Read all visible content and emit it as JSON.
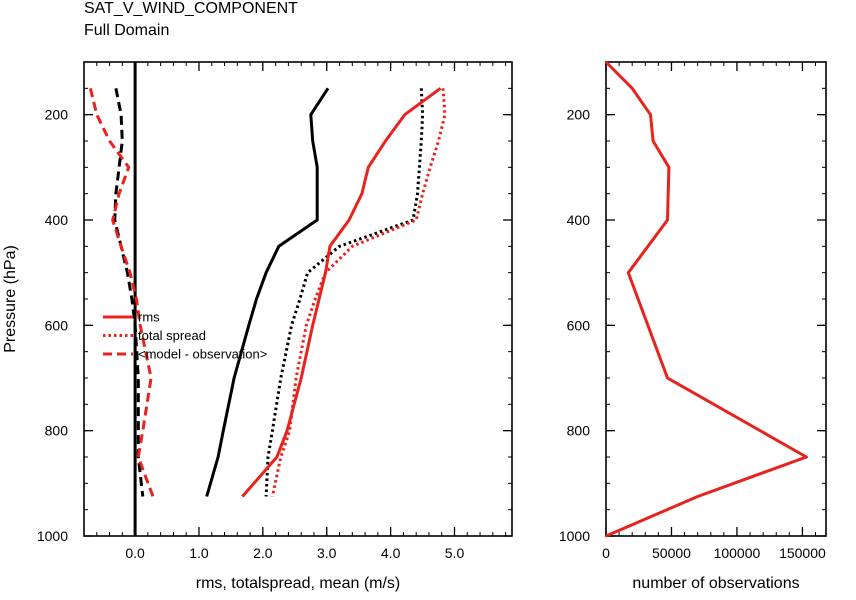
{
  "header": {
    "title": "SAT_V_WIND_COMPONENT",
    "subtitle": "Full Domain"
  },
  "chart_data": [
    {
      "type": "line",
      "xlabel": "rms, totalspread, mean (m/s)",
      "ylabel": "Pressure (hPa)",
      "xlim": [
        -0.8,
        5.9
      ],
      "ylim": [
        1000,
        100
      ],
      "xticks": [
        0.0,
        1.0,
        2.0,
        3.0,
        4.0,
        5.0
      ],
      "xtick_labels": [
        "0.0",
        "1.0",
        "2.0",
        "3.0",
        "4.0",
        "5.0"
      ],
      "yticks": [
        200,
        400,
        600,
        800,
        1000
      ],
      "ytick_labels": [
        "200",
        "400",
        "600",
        "800",
        "1000"
      ],
      "y_reversed": true,
      "legend_position": "left-middle",
      "zero_line": true,
      "series": [
        {
          "name": "rms",
          "group": "red",
          "color": "#e8221c",
          "dash": "solid",
          "x": [
            4.78,
            4.22,
            3.92,
            3.65,
            3.55,
            3.35,
            3.05,
            2.98,
            2.88,
            2.78,
            2.6,
            2.38,
            2.22,
            1.68
          ],
          "y": [
            150,
            200,
            250,
            300,
            350,
            400,
            450,
            500,
            550,
            600,
            700,
            800,
            850,
            925
          ]
        },
        {
          "name": "total spread",
          "group": "red",
          "color": "#e8221c",
          "dash": "dotted",
          "x": [
            4.82,
            4.85,
            4.75,
            4.62,
            4.5,
            4.4,
            3.4,
            2.98,
            2.82,
            2.68,
            2.52,
            2.42,
            2.28,
            2.15
          ],
          "y": [
            150,
            200,
            250,
            300,
            350,
            400,
            450,
            500,
            550,
            600,
            700,
            800,
            850,
            925
          ]
        },
        {
          "name": "<model - observation>",
          "group": "red",
          "color": "#e8221c",
          "dash": "dashed",
          "x": [
            -0.7,
            -0.6,
            -0.4,
            -0.1,
            -0.25,
            -0.35,
            -0.22,
            -0.08,
            0.02,
            0.08,
            0.25,
            0.12,
            0.05,
            0.28
          ],
          "y": [
            150,
            200,
            250,
            300,
            350,
            400,
            450,
            500,
            550,
            600,
            700,
            800,
            850,
            925
          ]
        },
        {
          "name": "",
          "group": "black",
          "color": "#000000",
          "dash": "solid",
          "x": [
            3.02,
            2.75,
            2.78,
            2.85,
            2.85,
            2.85,
            2.25,
            2.05,
            1.9,
            1.78,
            1.55,
            1.38,
            1.3,
            1.12
          ],
          "y": [
            150,
            200,
            250,
            300,
            350,
            400,
            450,
            500,
            550,
            600,
            700,
            800,
            850,
            925
          ]
        },
        {
          "name": "",
          "group": "black",
          "color": "#000000",
          "dash": "dotted",
          "x": [
            4.48,
            4.5,
            4.48,
            4.45,
            4.42,
            4.35,
            3.2,
            2.7,
            2.58,
            2.45,
            2.28,
            2.15,
            2.08,
            2.05
          ],
          "y": [
            150,
            200,
            250,
            300,
            350,
            400,
            450,
            500,
            550,
            600,
            700,
            800,
            850,
            925
          ]
        },
        {
          "name": "",
          "group": "black",
          "color": "#000000",
          "dash": "dashed",
          "x": [
            -0.3,
            -0.22,
            -0.2,
            -0.25,
            -0.3,
            -0.32,
            -0.22,
            -0.12,
            -0.05,
            0.0,
            0.05,
            0.05,
            0.05,
            0.12
          ],
          "y": [
            150,
            200,
            250,
            300,
            350,
            400,
            450,
            500,
            550,
            600,
            700,
            800,
            850,
            925
          ]
        }
      ]
    },
    {
      "type": "line",
      "xlabel": "number of observations",
      "ylabel": "",
      "xlim": [
        0,
        168000
      ],
      "ylim": [
        1000,
        100
      ],
      "xticks": [
        0,
        50000,
        100000,
        150000
      ],
      "xtick_labels": [
        "0",
        "50000",
        "100000",
        "150000"
      ],
      "yticks": [
        200,
        400,
        600,
        800,
        1000
      ],
      "ytick_labels": [
        "200",
        "400",
        "600",
        "800",
        "1000"
      ],
      "y_reversed": true,
      "series": [
        {
          "name": "",
          "color": "#e8221c",
          "dash": "solid",
          "x": [
            0,
            20000,
            34000,
            36000,
            48000,
            47000,
            17000,
            47000,
            153000,
            70000,
            0
          ],
          "y": [
            100,
            150,
            200,
            250,
            300,
            400,
            500,
            700,
            850,
            925,
            1000
          ]
        }
      ]
    }
  ]
}
